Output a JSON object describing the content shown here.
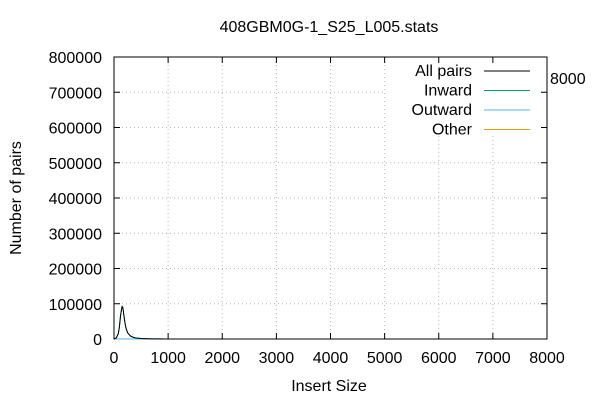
{
  "chart_data": {
    "type": "line",
    "title": "408GBM0G-1_S25_L005.stats",
    "xlabel": "Insert Size",
    "ylabel": "Number of pairs",
    "xlim": [
      0,
      8000
    ],
    "ylim": [
      0,
      800000
    ],
    "x_ticks": [
      0,
      1000,
      2000,
      3000,
      4000,
      5000,
      6000,
      7000,
      8000
    ],
    "y_ticks": [
      0,
      100000,
      200000,
      300000,
      400000,
      500000,
      600000,
      700000,
      800000
    ],
    "grid": true,
    "legend_position": "top-right",
    "stray_label": "8000",
    "series": [
      {
        "name": "All pairs",
        "color": "#000000",
        "x": [
          0,
          40,
          80,
          100,
          120,
          140,
          150,
          160,
          170,
          180,
          200,
          220,
          250,
          300,
          350,
          400,
          500,
          600,
          700,
          800,
          1000,
          2000,
          4000,
          6000,
          8000
        ],
        "y": [
          0,
          3000,
          15000,
          35000,
          65000,
          85000,
          92000,
          90000,
          82000,
          70000,
          48000,
          32000,
          18000,
          9000,
          5000,
          3000,
          1500,
          800,
          400,
          200,
          100,
          50,
          0,
          0,
          0
        ]
      },
      {
        "name": "Inward",
        "color": "#009e73",
        "x": [
          0,
          40,
          80,
          100,
          120,
          140,
          150,
          160,
          170,
          180,
          200,
          220,
          250,
          300,
          350,
          400,
          500,
          600,
          700,
          800,
          1000,
          2000,
          4000,
          6000,
          8000
        ],
        "y": [
          0,
          3000,
          15000,
          35000,
          65000,
          85000,
          92000,
          90000,
          82000,
          70000,
          48000,
          32000,
          18000,
          9000,
          5000,
          3000,
          1500,
          800,
          400,
          200,
          100,
          50,
          0,
          0,
          0
        ]
      },
      {
        "name": "Outward",
        "color": "#56b4e9",
        "x": [
          0,
          8000
        ],
        "y": [
          0,
          0
        ]
      },
      {
        "name": "Other",
        "color": "#e69f00",
        "x": [
          0,
          8000
        ],
        "y": [
          0,
          0
        ]
      }
    ]
  }
}
